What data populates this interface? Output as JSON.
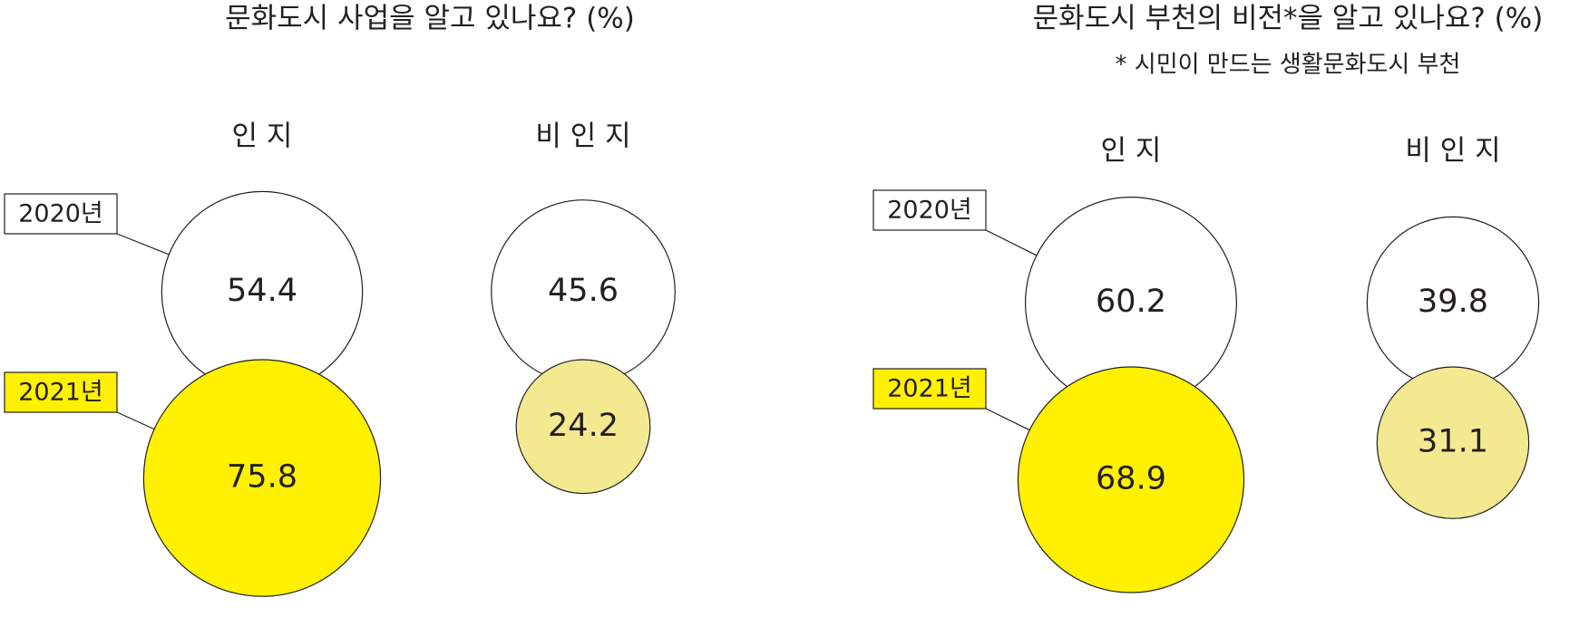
{
  "chart_data": [
    {
      "type": "bubble",
      "title": "문화도시 사업을 알고 있나요? (%)",
      "categories": [
        "인 지",
        "비 인 지"
      ],
      "series": [
        {
          "name": "2020년",
          "colors": [
            "#ffffff",
            "#ffffff"
          ],
          "values": [
            54.4,
            45.6
          ]
        },
        {
          "name": "2021년",
          "colors": [
            "#fff100",
            "#f3e990"
          ],
          "values": [
            75.8,
            24.2
          ]
        }
      ]
    },
    {
      "type": "bubble",
      "title": "문화도시 부천의 비전*을 알고 있나요? (%)",
      "subtitle": "* 시민이 만드는 생활문화도시 부천",
      "categories": [
        "인 지",
        "비 인 지"
      ],
      "series": [
        {
          "name": "2020년",
          "colors": [
            "#ffffff",
            "#ffffff"
          ],
          "values": [
            60.2,
            39.8
          ]
        },
        {
          "name": "2021년",
          "colors": [
            "#fff100",
            "#f3e990"
          ],
          "values": [
            68.9,
            31.1
          ]
        }
      ]
    }
  ]
}
